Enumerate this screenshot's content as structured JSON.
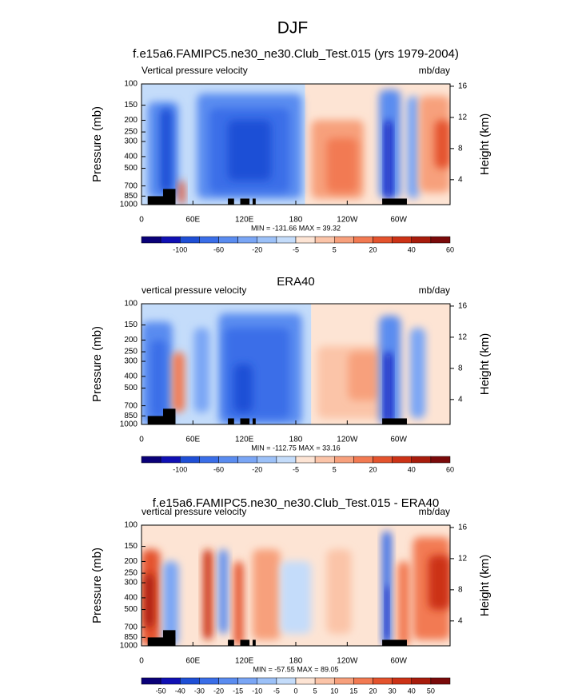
{
  "title": "DJF",
  "panels": [
    {
      "title": "f.e15a6.FAMIPC5.ne30_ne30.Club_Test.015 (yrs 1979-2004)",
      "left_label": "Vertical pressure velocity",
      "right_label": "mb/day",
      "y_label": "Pressure (mb)",
      "y2_label": "Height (km)",
      "ylog": true,
      "ylim": [
        1000,
        100
      ],
      "yticks": [
        100,
        150,
        200,
        250,
        300,
        400,
        500,
        700,
        850,
        1000
      ],
      "y2lim": [
        0.8,
        16.3
      ],
      "y2ticks": [
        4,
        8,
        12,
        16
      ],
      "xlim": [
        0,
        360
      ],
      "xticks": [
        0,
        {
          "value": 60,
          "label": "60E"
        },
        {
          "value": 120,
          "label": "120E"
        },
        180,
        {
          "value": 240,
          "label": "120W"
        },
        {
          "value": 300,
          "label": "60W"
        }
      ],
      "stats": "MIN = -131.66  MAX =  39.32",
      "colorbar": {
        "labels": [
          -100,
          -60,
          -20,
          -5,
          5,
          20,
          40,
          60
        ],
        "colors": [
          "#0a0078",
          "#1010b4",
          "#1f4fd6",
          "#3a6ee8",
          "#5a8cf0",
          "#7aa6f5",
          "#9cc1f8",
          "#c4dcfa",
          "#fde4d4",
          "#fbc4a8",
          "#f7a07c",
          "#f27a52",
          "#e4532d",
          "#cc3216",
          "#a81c0c",
          "#7a0a0a"
        ]
      }
    },
    {
      "title": "ERA40",
      "left_label": "vertical pressure velocity",
      "right_label": "mb/day",
      "y_label": "Pressure (mb)",
      "y2_label": "Height (km)",
      "ylog": true,
      "ylim": [
        1000,
        100
      ],
      "yticks": [
        100,
        150,
        200,
        250,
        300,
        400,
        500,
        700,
        850,
        1000
      ],
      "y2lim": [
        0.8,
        16.3
      ],
      "y2ticks": [
        4,
        8,
        12,
        16
      ],
      "xlim": [
        0,
        360
      ],
      "xticks": [
        0,
        {
          "value": 60,
          "label": "60E"
        },
        {
          "value": 120,
          "label": "120E"
        },
        180,
        {
          "value": 240,
          "label": "120W"
        },
        {
          "value": 300,
          "label": "60W"
        }
      ],
      "stats": "MIN = -112.75  MAX =  33.16",
      "colorbar": {
        "labels": [
          -100,
          -60,
          -20,
          -5,
          5,
          20,
          40,
          60
        ],
        "colors": [
          "#0a0078",
          "#1010b4",
          "#1f4fd6",
          "#3a6ee8",
          "#5a8cf0",
          "#7aa6f5",
          "#9cc1f8",
          "#c4dcfa",
          "#fde4d4",
          "#fbc4a8",
          "#f7a07c",
          "#f27a52",
          "#e4532d",
          "#cc3216",
          "#a81c0c",
          "#7a0a0a"
        ]
      }
    },
    {
      "title": "f.e15a6.FAMIPC5.ne30_ne30.Club_Test.015 - ERA40",
      "left_label": "vertical pressure velocity",
      "right_label": "mb/day",
      "y_label": "Pressure (mb)",
      "y2_label": "Height (km)",
      "ylog": true,
      "ylim": [
        1000,
        100
      ],
      "yticks": [
        100,
        150,
        200,
        250,
        300,
        400,
        500,
        700,
        850,
        1000
      ],
      "y2lim": [
        0.8,
        16.3
      ],
      "y2ticks": [
        4,
        8,
        12,
        16
      ],
      "xlim": [
        0,
        360
      ],
      "xticks": [
        0,
        {
          "value": 60,
          "label": "60E"
        },
        {
          "value": 120,
          "label": "120E"
        },
        180,
        {
          "value": 240,
          "label": "120W"
        },
        {
          "value": 300,
          "label": "60W"
        }
      ],
      "stats": "MIN = -57.55  MAX =  89.05",
      "colorbar": {
        "labels": [
          -50,
          -40,
          -30,
          -20,
          -15,
          -10,
          -5,
          0,
          5,
          10,
          15,
          20,
          30,
          40,
          50
        ],
        "colors": [
          "#0a0078",
          "#1010b4",
          "#1f4fd6",
          "#3a6ee8",
          "#5a8cf0",
          "#7aa6f5",
          "#9cc1f8",
          "#c4dcfa",
          "#fde4d4",
          "#fbc4a8",
          "#f7a07c",
          "#f27a52",
          "#e4532d",
          "#cc3216",
          "#a81c0c",
          "#7a0a0a"
        ]
      }
    }
  ]
}
